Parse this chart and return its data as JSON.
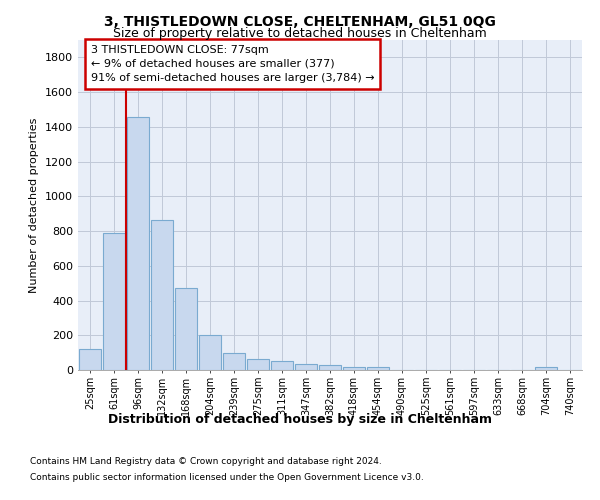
{
  "title": "3, THISTLEDOWN CLOSE, CHELTENHAM, GL51 0QG",
  "subtitle": "Size of property relative to detached houses in Cheltenham",
  "xlabel": "Distribution of detached houses by size in Cheltenham",
  "ylabel": "Number of detached properties",
  "footnote1": "Contains HM Land Registry data © Crown copyright and database right 2024.",
  "footnote2": "Contains public sector information licensed under the Open Government Licence v3.0.",
  "bar_labels": [
    "25sqm",
    "61sqm",
    "96sqm",
    "132sqm",
    "168sqm",
    "204sqm",
    "239sqm",
    "275sqm",
    "311sqm",
    "347sqm",
    "382sqm",
    "418sqm",
    "454sqm",
    "490sqm",
    "525sqm",
    "561sqm",
    "597sqm",
    "633sqm",
    "668sqm",
    "704sqm",
    "740sqm"
  ],
  "bar_values": [
    120,
    790,
    1455,
    865,
    475,
    200,
    100,
    65,
    50,
    35,
    28,
    15,
    18,
    2,
    2,
    2,
    2,
    2,
    2,
    15,
    2
  ],
  "bar_color": "#c8d8ee",
  "bar_edge_color": "#7aaad0",
  "annotation_line1": "3 THISTLEDOWN CLOSE: 77sqm",
  "annotation_line2": "← 9% of detached houses are smaller (377)",
  "annotation_line3": "91% of semi-detached houses are larger (3,784) →",
  "vline_color": "#cc0000",
  "vline_x_index": 1.5,
  "ylim": [
    0,
    1900
  ],
  "yticks": [
    0,
    200,
    400,
    600,
    800,
    1000,
    1200,
    1400,
    1600,
    1800
  ],
  "plot_bg_color": "#e8eef8",
  "grid_color": "#c0c8d8",
  "title_fontsize": 10,
  "subtitle_fontsize": 9,
  "ylabel_fontsize": 8,
  "xlabel_fontsize": 9,
  "ytick_fontsize": 8,
  "xtick_fontsize": 7,
  "annotation_fontsize": 8,
  "footnote_fontsize": 6.5
}
